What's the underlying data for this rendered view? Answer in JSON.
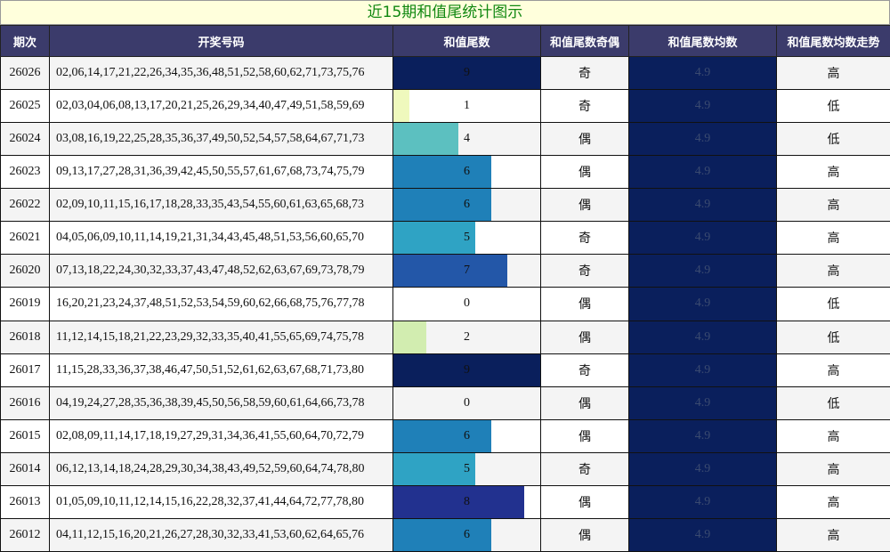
{
  "title": "近15期和值尾统计图示",
  "headers": [
    "期次",
    "开奖号码",
    "和值尾数",
    "和值尾数奇偶",
    "和值尾数均数",
    "和值尾数均数走势"
  ],
  "bar_max": 9,
  "bar_colors": {
    "0": "#ffffff",
    "1": "#eff9bd",
    "2": "#d2edb0",
    "4": "#5cc0c0",
    "5": "#2fa3c4",
    "6": "#1f80b8",
    "7": "#2357a8",
    "8": "#22318f",
    "9": "#0a1f5c"
  },
  "rows": [
    {
      "period": "26026",
      "numbers": "02,06,14,17,21,22,26,34,35,36,48,51,52,58,60,62,71,73,75,76",
      "tail": 9,
      "parity": "奇",
      "avg": "4.9",
      "trend": "高"
    },
    {
      "period": "26025",
      "numbers": "02,03,04,06,08,13,17,20,21,25,26,29,34,40,47,49,51,58,59,69",
      "tail": 1,
      "parity": "奇",
      "avg": "4.9",
      "trend": "低"
    },
    {
      "period": "26024",
      "numbers": "03,08,16,19,22,25,28,35,36,37,49,50,52,54,57,58,64,67,71,73",
      "tail": 4,
      "parity": "偶",
      "avg": "4.9",
      "trend": "低"
    },
    {
      "period": "26023",
      "numbers": "09,13,17,27,28,31,36,39,42,45,50,55,57,61,67,68,73,74,75,79",
      "tail": 6,
      "parity": "偶",
      "avg": "4.9",
      "trend": "高"
    },
    {
      "period": "26022",
      "numbers": "02,09,10,11,15,16,17,18,28,33,35,43,54,55,60,61,63,65,68,73",
      "tail": 6,
      "parity": "偶",
      "avg": "4.9",
      "trend": "高"
    },
    {
      "period": "26021",
      "numbers": "04,05,06,09,10,11,14,19,21,31,34,43,45,48,51,53,56,60,65,70",
      "tail": 5,
      "parity": "奇",
      "avg": "4.9",
      "trend": "高"
    },
    {
      "period": "26020",
      "numbers": "07,13,18,22,24,30,32,33,37,43,47,48,52,62,63,67,69,73,78,79",
      "tail": 7,
      "parity": "奇",
      "avg": "4.9",
      "trend": "高"
    },
    {
      "period": "26019",
      "numbers": "16,20,21,23,24,37,48,51,52,53,54,59,60,62,66,68,75,76,77,78",
      "tail": 0,
      "parity": "偶",
      "avg": "4.9",
      "trend": "低"
    },
    {
      "period": "26018",
      "numbers": "11,12,14,15,18,21,22,23,29,32,33,35,40,41,55,65,69,74,75,78",
      "tail": 2,
      "parity": "偶",
      "avg": "4.9",
      "trend": "低"
    },
    {
      "period": "26017",
      "numbers": "11,15,28,33,36,37,38,46,47,50,51,52,61,62,63,67,68,71,73,80",
      "tail": 9,
      "parity": "奇",
      "avg": "4.9",
      "trend": "高"
    },
    {
      "period": "26016",
      "numbers": "04,19,24,27,28,35,36,38,39,45,50,56,58,59,60,61,64,66,73,78",
      "tail": 0,
      "parity": "偶",
      "avg": "4.9",
      "trend": "低"
    },
    {
      "period": "26015",
      "numbers": "02,08,09,11,14,17,18,19,27,29,31,34,36,41,55,60,64,70,72,79",
      "tail": 6,
      "parity": "偶",
      "avg": "4.9",
      "trend": "高"
    },
    {
      "period": "26014",
      "numbers": "06,12,13,14,18,24,28,29,30,34,38,43,49,52,59,60,64,74,78,80",
      "tail": 5,
      "parity": "奇",
      "avg": "4.9",
      "trend": "高"
    },
    {
      "period": "26013",
      "numbers": "01,05,09,10,11,12,14,15,16,22,28,32,37,41,44,64,72,77,78,80",
      "tail": 8,
      "parity": "偶",
      "avg": "4.9",
      "trend": "高"
    },
    {
      "period": "26012",
      "numbers": "04,11,12,15,16,20,21,26,27,28,30,32,33,41,53,60,62,64,65,76",
      "tail": 6,
      "parity": "偶",
      "avg": "4.9",
      "trend": "高"
    }
  ]
}
